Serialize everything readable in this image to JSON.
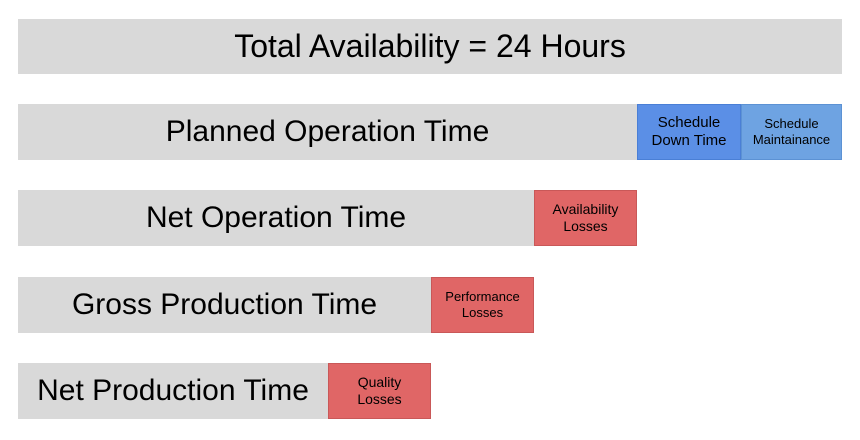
{
  "rows": [
    {
      "label": "Total Availability = 24 Hours"
    },
    {
      "label": "Planned Operation Time",
      "segments": [
        {
          "label": "Schedule\nDown Time",
          "color": "#5b8fe6"
        },
        {
          "label": "Schedule\nMaintainance",
          "color": "#6ea3e2"
        }
      ]
    },
    {
      "label": "Net Operation Time",
      "segments": [
        {
          "label": "Availability\nLosses",
          "color": "#e06666"
        }
      ]
    },
    {
      "label": "Gross Production Time",
      "segments": [
        {
          "label": "Performance\nLosses",
          "color": "#e06666"
        }
      ]
    },
    {
      "label": "Net Production Time",
      "segments": [
        {
          "label": "Quality\nLosses",
          "color": "#e06666"
        }
      ]
    }
  ],
  "colors": {
    "bar": "#d9d9d9",
    "loss": "#e06666",
    "schedule_down": "#5b8fe6",
    "schedule_maintenance": "#6ea3e2"
  }
}
